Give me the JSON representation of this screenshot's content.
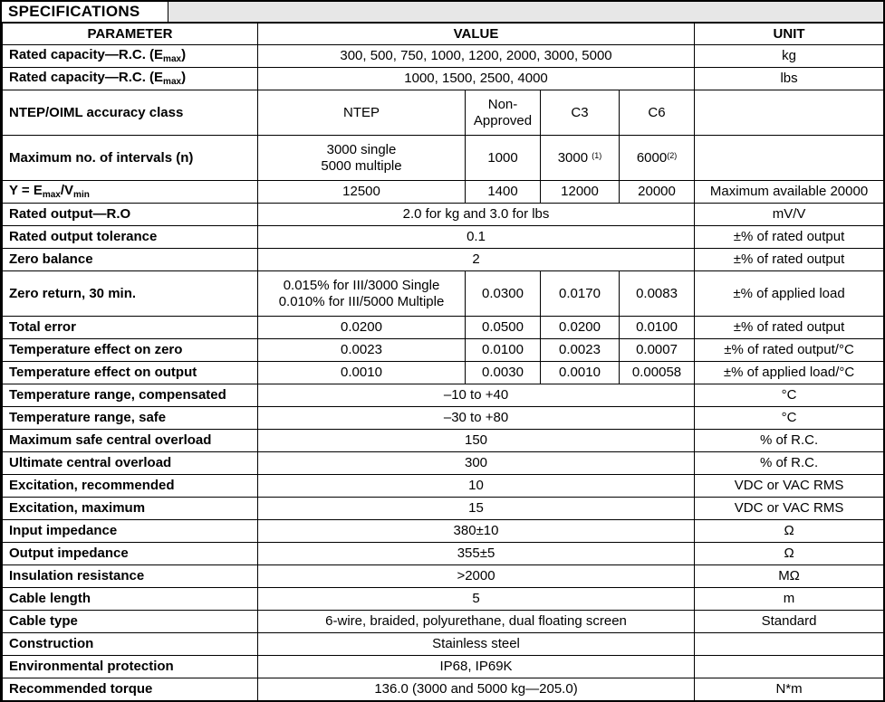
{
  "title": "SPECIFICATIONS",
  "columns": {
    "parameter": "PARAMETER",
    "value": "VALUE",
    "unit": "UNIT"
  },
  "colors": {
    "border": "#000000",
    "title_band_fill": "#e7e7e7",
    "cell_fill": "#ffffff"
  },
  "table": {
    "rows": [
      {
        "param": "Rated capacity—R.C. (E~max~)",
        "value": "300, 500, 750, 1000, 1200, 2000, 3000, 5000",
        "unit": "kg"
      },
      {
        "param": "Rated capacity—R.C. (E~max~)",
        "value": "1000, 1500, 2500, 4000",
        "unit": "lbs"
      },
      {
        "param": "NTEP/OIML accuracy class",
        "values": [
          "NTEP",
          "Non-Approved",
          "C3",
          "C6"
        ],
        "unit": "",
        "tall": true
      },
      {
        "param": "Maximum no. of intervals (n)",
        "values": [
          "3000 single\n5000 multiple",
          "1000",
          "3000 ^(1)^",
          "6000^(2)^"
        ],
        "unit": "",
        "tall": true
      },
      {
        "param": "Y = E~max~/V~min~",
        "values": [
          "12500",
          "1400",
          "12000",
          "20000"
        ],
        "unit": "Maximum available 20000"
      },
      {
        "param": "Rated output—R.O",
        "value": "2.0 for kg and 3.0 for lbs",
        "unit": "mV/V"
      },
      {
        "param": "Rated output tolerance",
        "value": "0.1",
        "unit": "±% of rated output"
      },
      {
        "param": "Zero balance",
        "value": "2",
        "unit": "±% of rated output"
      },
      {
        "param": "Zero return, 30 min.",
        "values": [
          "0.015% for III/3000 Single\n0.010% for III/5000 Multiple",
          "0.0300",
          "0.0170",
          "0.0083"
        ],
        "unit": "±% of applied load",
        "tall": true
      },
      {
        "param": "Total error",
        "values": [
          "0.0200",
          "0.0500",
          "0.0200",
          "0.0100"
        ],
        "unit": "±% of rated output"
      },
      {
        "param": "Temperature effect on zero",
        "values": [
          "0.0023",
          "0.0100",
          "0.0023",
          "0.0007"
        ],
        "unit": "±% of rated output/°C"
      },
      {
        "param": "Temperature effect on output",
        "values": [
          "0.0010",
          "0.0030",
          "0.0010",
          "0.00058"
        ],
        "unit": "±% of applied load/°C"
      },
      {
        "param": "Temperature range, compensated",
        "value": "–10 to +40",
        "unit": "°C"
      },
      {
        "param": "Temperature range, safe",
        "value": "–30 to +80",
        "unit": "°C"
      },
      {
        "param": "Maximum safe central overload",
        "value": "150",
        "unit": "% of R.C."
      },
      {
        "param": "Ultimate central overload",
        "value": "300",
        "unit": "% of R.C."
      },
      {
        "param": "Excitation, recommended",
        "value": "10",
        "unit": "VDC or VAC RMS"
      },
      {
        "param": "Excitation, maximum",
        "value": "15",
        "unit": "VDC or VAC RMS"
      },
      {
        "param": "Input impedance",
        "value": "380±10",
        "unit": "Ω"
      },
      {
        "param": "Output impedance",
        "value": "355±5",
        "unit": "Ω"
      },
      {
        "param": "Insulation resistance",
        "value": ">2000",
        "unit": "MΩ"
      },
      {
        "param": "Cable length",
        "value": "5",
        "unit": "m"
      },
      {
        "param": "Cable type",
        "value": "6-wire, braided, polyurethane, dual floating screen",
        "unit": "Standard"
      },
      {
        "param": "Construction",
        "value": "Stainless steel",
        "unit": ""
      },
      {
        "param": "Environmental protection",
        "value": "IP68, IP69K",
        "unit": ""
      },
      {
        "param": "Recommended torque",
        "value": "136.0 (3000 and 5000 kg—205.0)",
        "unit": "N*m"
      }
    ]
  }
}
